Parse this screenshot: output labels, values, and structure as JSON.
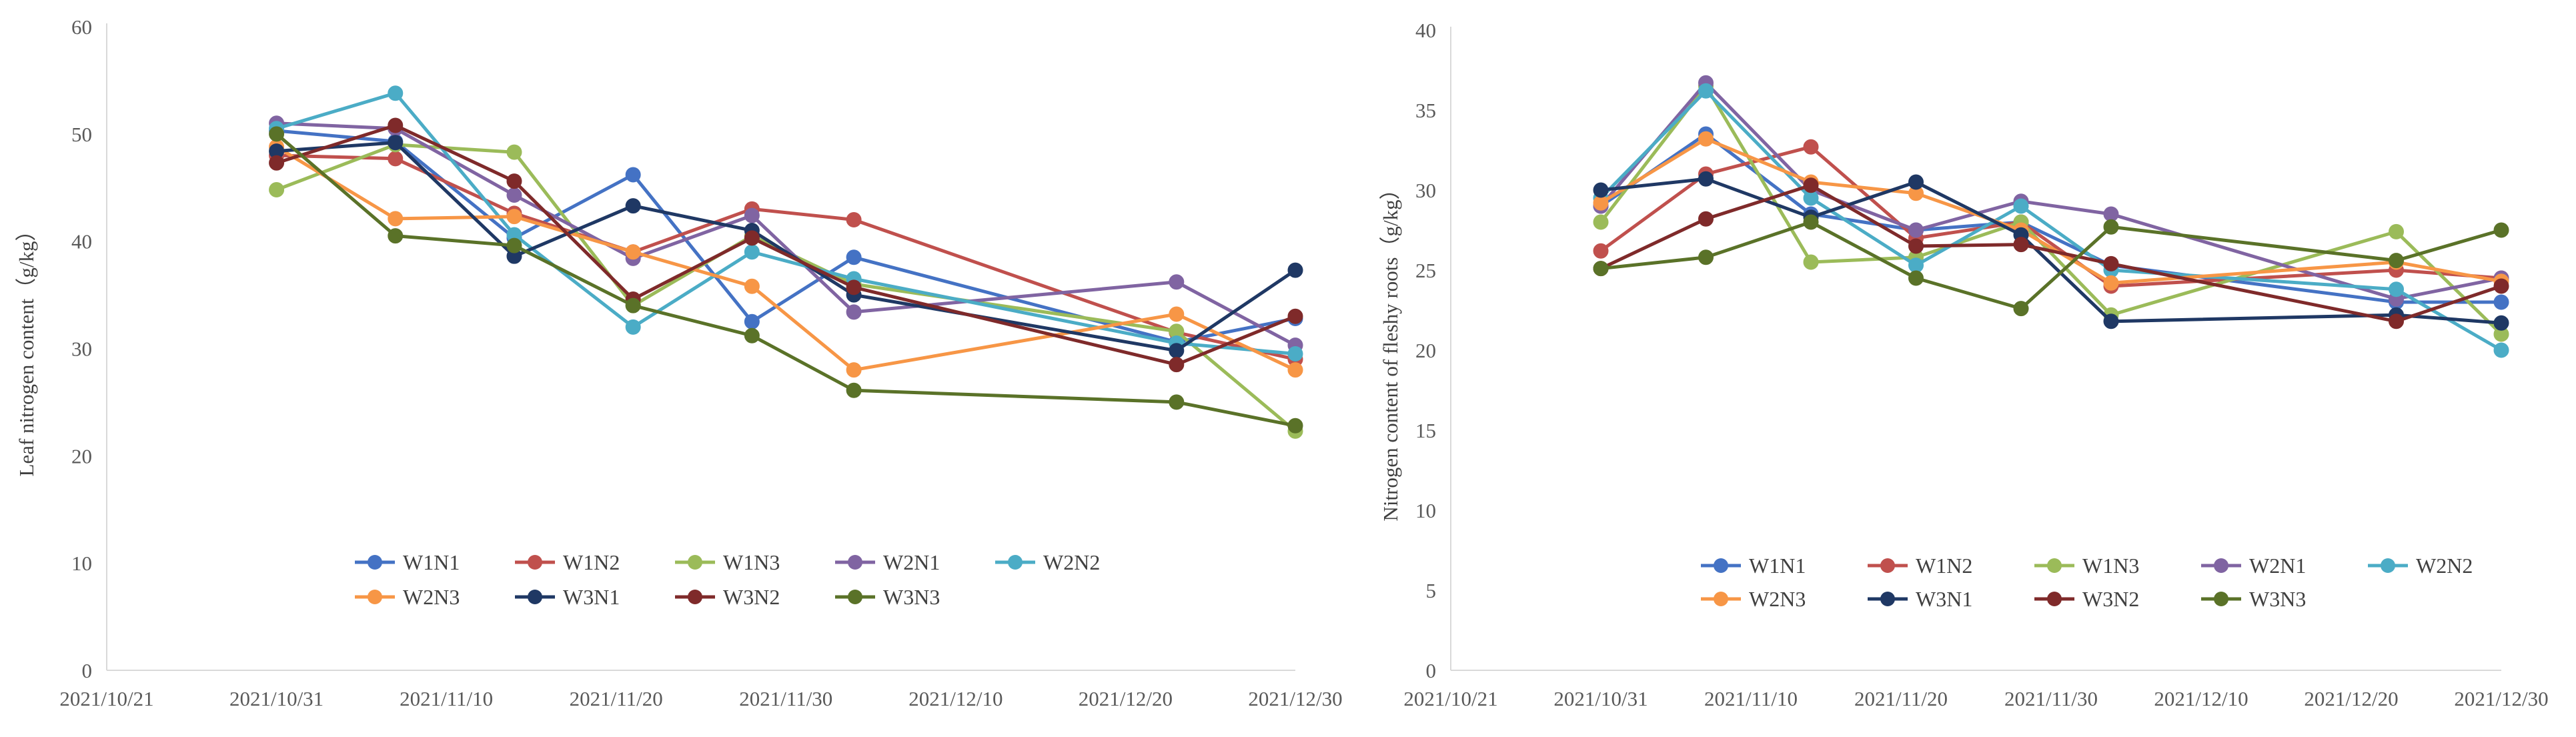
{
  "chart_data": [
    {
      "type": "line",
      "title": "",
      "xlabel": "",
      "ylabel": "Leaf nitrogen content（g/kg）",
      "ylim": [
        0,
        60
      ],
      "yticks": [
        0,
        10,
        20,
        30,
        40,
        50,
        60
      ],
      "xlim": [
        "2021/10/21",
        "2021/12/30"
      ],
      "xticks": [
        "2021/10/21",
        "2021/10/31",
        "2021/11/10",
        "2021/11/20",
        "2021/11/30",
        "2021/12/10",
        "2021/12/20",
        "2021/12/30"
      ],
      "grid": false,
      "legend_position": "bottom-center",
      "series": [
        {
          "name": "W1N1",
          "color": "#4472C4",
          "x": [
            "2021/10/31",
            "2021/11/07",
            "2021/11/14",
            "2021/11/21",
            "2021/11/28",
            "2021/12/04",
            "2021/12/23",
            "2021/12/30"
          ],
          "values": [
            50.3,
            49.3,
            40.3,
            46.2,
            32.5,
            38.5,
            30.6,
            32.8
          ]
        },
        {
          "name": "W1N2",
          "color": "#C0504D",
          "x": [
            "2021/10/31",
            "2021/11/07",
            "2021/11/14",
            "2021/11/21",
            "2021/11/28",
            "2021/12/04",
            "2021/12/23",
            "2021/12/30"
          ],
          "values": [
            48.0,
            47.7,
            42.6,
            39.0,
            43.0,
            42.0,
            31.5,
            29.0
          ]
        },
        {
          "name": "W1N3",
          "color": "#9BBB59",
          "x": [
            "2021/10/31",
            "2021/11/07",
            "2021/11/14",
            "2021/11/21",
            "2021/11/28",
            "2021/12/04",
            "2021/12/23",
            "2021/12/30"
          ],
          "values": [
            44.8,
            49.0,
            48.3,
            34.0,
            40.5,
            36.0,
            31.6,
            22.3
          ]
        },
        {
          "name": "W2N1",
          "color": "#8064A2",
          "x": [
            "2021/10/31",
            "2021/11/07",
            "2021/11/14",
            "2021/11/21",
            "2021/11/28",
            "2021/12/04",
            "2021/12/23",
            "2021/12/30"
          ],
          "values": [
            51.0,
            50.5,
            44.3,
            38.4,
            42.4,
            33.4,
            36.2,
            30.3
          ]
        },
        {
          "name": "W2N2",
          "color": "#4BACC6",
          "x": [
            "2021/10/31",
            "2021/11/07",
            "2021/11/14",
            "2021/11/21",
            "2021/11/28",
            "2021/12/04",
            "2021/12/23",
            "2021/12/30"
          ],
          "values": [
            50.5,
            53.8,
            40.6,
            32.0,
            39.0,
            36.5,
            30.5,
            29.5
          ]
        },
        {
          "name": "W2N3",
          "color": "#F79646",
          "x": [
            "2021/10/31",
            "2021/11/07",
            "2021/11/14",
            "2021/11/21",
            "2021/11/28",
            "2021/12/04",
            "2021/12/23",
            "2021/12/30"
          ],
          "values": [
            48.8,
            42.1,
            42.3,
            39.0,
            35.8,
            28.0,
            33.2,
            28.0
          ]
        },
        {
          "name": "W3N1",
          "color": "#1F3864",
          "x": [
            "2021/10/31",
            "2021/11/07",
            "2021/11/14",
            "2021/11/21",
            "2021/11/28",
            "2021/12/04",
            "2021/12/23",
            "2021/12/30"
          ],
          "values": [
            48.4,
            49.2,
            38.6,
            43.3,
            41.0,
            35.0,
            29.8,
            37.3
          ]
        },
        {
          "name": "W3N2",
          "color": "#7F2A2A",
          "x": [
            "2021/10/31",
            "2021/11/07",
            "2021/11/14",
            "2021/11/21",
            "2021/11/28",
            "2021/12/04",
            "2021/12/23",
            "2021/12/30"
          ],
          "values": [
            47.3,
            50.8,
            45.6,
            34.6,
            40.3,
            35.7,
            28.5,
            33.0
          ]
        },
        {
          "name": "W3N3",
          "color": "#5A7228",
          "x": [
            "2021/10/31",
            "2021/11/07",
            "2021/11/14",
            "2021/11/21",
            "2021/11/28",
            "2021/12/04",
            "2021/12/23",
            "2021/12/30"
          ],
          "values": [
            50.0,
            40.5,
            39.6,
            34.0,
            31.2,
            26.1,
            25.0,
            22.8
          ]
        }
      ]
    },
    {
      "type": "line",
      "title": "",
      "xlabel": "",
      "ylabel": "Nitrogen content of fleshy roots（g/kg）",
      "ylim": [
        0,
        40
      ],
      "yticks": [
        0,
        5,
        10,
        15,
        20,
        25,
        30,
        35,
        40
      ],
      "xlim": [
        "2021/10/21",
        "2021/12/30"
      ],
      "xticks": [
        "2021/10/21",
        "2021/10/31",
        "2021/11/10",
        "2021/11/20",
        "2021/11/30",
        "2021/12/10",
        "2021/12/20",
        "2021/12/30"
      ],
      "grid": false,
      "legend_position": "bottom-center",
      "series": [
        {
          "name": "W1N1",
          "color": "#4472C4",
          "x": [
            "2021/10/31",
            "2021/11/07",
            "2021/11/14",
            "2021/11/21",
            "2021/11/28",
            "2021/12/04",
            "2021/12/23",
            "2021/12/30"
          ],
          "values": [
            29.0,
            33.5,
            28.5,
            27.5,
            28.0,
            25.3,
            23.0,
            23.0
          ]
        },
        {
          "name": "W1N2",
          "color": "#C0504D",
          "x": [
            "2021/10/31",
            "2021/11/07",
            "2021/11/14",
            "2021/11/21",
            "2021/11/28",
            "2021/12/04",
            "2021/12/23",
            "2021/12/30"
          ],
          "values": [
            26.2,
            31.0,
            32.7,
            27.0,
            28.0,
            24.0,
            25.0,
            24.5
          ]
        },
        {
          "name": "W1N3",
          "color": "#9BBB59",
          "x": [
            "2021/10/31",
            "2021/11/07",
            "2021/11/14",
            "2021/11/21",
            "2021/11/28",
            "2021/12/04",
            "2021/12/23",
            "2021/12/30"
          ],
          "values": [
            28.0,
            36.5,
            25.5,
            25.8,
            28.0,
            22.2,
            27.4,
            21.0
          ]
        },
        {
          "name": "W2N1",
          "color": "#8064A2",
          "x": [
            "2021/10/31",
            "2021/11/07",
            "2021/11/14",
            "2021/11/21",
            "2021/11/28",
            "2021/12/04",
            "2021/12/23",
            "2021/12/30"
          ],
          "values": [
            29.0,
            36.7,
            30.0,
            27.5,
            29.3,
            28.5,
            23.2,
            24.5
          ]
        },
        {
          "name": "W2N2",
          "color": "#4BACC6",
          "x": [
            "2021/10/31",
            "2021/11/07",
            "2021/11/14",
            "2021/11/21",
            "2021/11/28",
            "2021/12/04",
            "2021/12/23",
            "2021/12/30"
          ],
          "values": [
            29.5,
            36.2,
            29.5,
            25.3,
            29.0,
            25.0,
            23.8,
            20.0
          ]
        },
        {
          "name": "W2N3",
          "color": "#F79646",
          "x": [
            "2021/10/31",
            "2021/11/07",
            "2021/11/14",
            "2021/11/21",
            "2021/11/28",
            "2021/12/04",
            "2021/12/23",
            "2021/12/30"
          ],
          "values": [
            29.2,
            33.2,
            30.5,
            29.8,
            27.5,
            24.2,
            25.5,
            24.3
          ]
        },
        {
          "name": "W3N1",
          "color": "#1F3864",
          "x": [
            "2021/10/31",
            "2021/11/07",
            "2021/11/14",
            "2021/11/21",
            "2021/11/28",
            "2021/12/04",
            "2021/12/23",
            "2021/12/30"
          ],
          "values": [
            30.0,
            30.7,
            28.3,
            30.5,
            27.2,
            21.8,
            22.2,
            21.7
          ]
        },
        {
          "name": "W3N2",
          "color": "#7F2A2A",
          "x": [
            "2021/10/31",
            "2021/11/07",
            "2021/11/14",
            "2021/11/21",
            "2021/11/28",
            "2021/12/04",
            "2021/12/23",
            "2021/12/30"
          ],
          "values": [
            25.1,
            28.2,
            30.3,
            26.5,
            26.6,
            25.4,
            21.8,
            24.0
          ]
        },
        {
          "name": "W3N3",
          "color": "#5A7228",
          "x": [
            "2021/10/31",
            "2021/11/07",
            "2021/11/14",
            "2021/11/21",
            "2021/11/28",
            "2021/12/04",
            "2021/12/23",
            "2021/12/30"
          ],
          "values": [
            25.1,
            25.8,
            28.0,
            24.5,
            22.6,
            27.7,
            25.6,
            27.5
          ]
        }
      ]
    }
  ]
}
